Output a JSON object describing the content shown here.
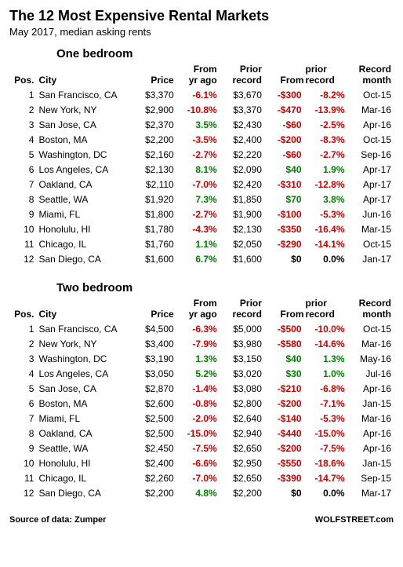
{
  "title": "The 12 Most Expensive Rental Markets",
  "subtitle": "May 2017, median asking rents",
  "footer_left": "Source of data: Zumper",
  "footer_right": "WOLFSTREET.com",
  "headers": {
    "pos": "Pos.",
    "city": "City",
    "price": "Price",
    "from_yr": "From\nyr ago",
    "prior": "Prior\nrecord",
    "from_prior": "From\nprior record",
    "month": "Record\nmonth"
  },
  "sections": [
    {
      "label": "One bedroom",
      "rows": [
        {
          "pos": 1,
          "city": "San Francisco, CA",
          "price": "$3,370",
          "yoy": "-6.1%",
          "yoy_c": "neg",
          "prior": "$3,670",
          "diff": "-$300",
          "diff_c": "neg",
          "pct": "-8.2%",
          "pct_c": "neg",
          "month": "Oct-15"
        },
        {
          "pos": 2,
          "city": "New York, NY",
          "price": "$2,900",
          "yoy": "-10.8%",
          "yoy_c": "neg",
          "prior": "$3,370",
          "diff": "-$470",
          "diff_c": "neg",
          "pct": "-13.9%",
          "pct_c": "neg",
          "month": "Mar-16"
        },
        {
          "pos": 3,
          "city": "San Jose, CA",
          "price": "$2,370",
          "yoy": "3.5%",
          "yoy_c": "pos",
          "prior": "$2,430",
          "diff": "-$60",
          "diff_c": "neg",
          "pct": "-2.5%",
          "pct_c": "neg",
          "month": "Apr-16"
        },
        {
          "pos": 4,
          "city": "Boston, MA",
          "price": "$2,200",
          "yoy": "-3.5%",
          "yoy_c": "neg",
          "prior": "$2,400",
          "diff": "-$200",
          "diff_c": "neg",
          "pct": "-8.3%",
          "pct_c": "neg",
          "month": "Oct-15"
        },
        {
          "pos": 5,
          "city": "Washington, DC",
          "price": "$2,160",
          "yoy": "-2.7%",
          "yoy_c": "neg",
          "prior": "$2,220",
          "diff": "-$60",
          "diff_c": "neg",
          "pct": "-2.7%",
          "pct_c": "neg",
          "month": "Sep-16"
        },
        {
          "pos": 6,
          "city": "Los Angeles, CA",
          "price": "$2,130",
          "yoy": "8.1%",
          "yoy_c": "pos",
          "prior": "$2,090",
          "diff": "$40",
          "diff_c": "pos",
          "pct": "1.9%",
          "pct_c": "pos",
          "month": "Apr-17"
        },
        {
          "pos": 7,
          "city": "Oakland, CA",
          "price": "$2,110",
          "yoy": "-7.0%",
          "yoy_c": "neg",
          "prior": "$2,420",
          "diff": "-$310",
          "diff_c": "neg",
          "pct": "-12.8%",
          "pct_c": "neg",
          "month": "Apr-17"
        },
        {
          "pos": 8,
          "city": "Seattle, WA",
          "price": "$1,920",
          "yoy": "7.3%",
          "yoy_c": "pos",
          "prior": "$1,850",
          "diff": "$70",
          "diff_c": "pos",
          "pct": "3.8%",
          "pct_c": "pos",
          "month": "Apr-17"
        },
        {
          "pos": 9,
          "city": "Miami, FL",
          "price": "$1,800",
          "yoy": "-2.7%",
          "yoy_c": "neg",
          "prior": "$1,900",
          "diff": "-$100",
          "diff_c": "neg",
          "pct": "-5.3%",
          "pct_c": "neg",
          "month": "Jun-16"
        },
        {
          "pos": 10,
          "city": "Honolulu, HI",
          "price": "$1,780",
          "yoy": "-4.3%",
          "yoy_c": "neg",
          "prior": "$2,130",
          "diff": "-$350",
          "diff_c": "neg",
          "pct": "-16.4%",
          "pct_c": "neg",
          "month": "Mar-15"
        },
        {
          "pos": 11,
          "city": "Chicago, IL",
          "price": "$1,760",
          "yoy": "1.1%",
          "yoy_c": "pos",
          "prior": "$2,050",
          "diff": "-$290",
          "diff_c": "neg",
          "pct": "-14.1%",
          "pct_c": "neg",
          "month": "Oct-15"
        },
        {
          "pos": 12,
          "city": "San Diego, CA",
          "price": "$1,600",
          "yoy": "6.7%",
          "yoy_c": "pos",
          "prior": "$1,600",
          "diff": "$0",
          "diff_c": "zero",
          "pct": "0.0%",
          "pct_c": "zero",
          "month": "Jan-17"
        }
      ]
    },
    {
      "label": "Two bedroom",
      "rows": [
        {
          "pos": 1,
          "city": "San Francisco, CA",
          "price": "$4,500",
          "yoy": "-6.3%",
          "yoy_c": "neg",
          "prior": "$5,000",
          "diff": "-$500",
          "diff_c": "neg",
          "pct": "-10.0%",
          "pct_c": "neg",
          "month": "Oct-15"
        },
        {
          "pos": 2,
          "city": "New York, NY",
          "price": "$3,400",
          "yoy": "-7.9%",
          "yoy_c": "neg",
          "prior": "$3,980",
          "diff": "-$580",
          "diff_c": "neg",
          "pct": "-14.6%",
          "pct_c": "neg",
          "month": "Mar-16"
        },
        {
          "pos": 3,
          "city": "Washington, DC",
          "price": "$3,190",
          "yoy": "1.3%",
          "yoy_c": "pos",
          "prior": "$3,150",
          "diff": "$40",
          "diff_c": "pos",
          "pct": "1.3%",
          "pct_c": "pos",
          "month": "May-16"
        },
        {
          "pos": 4,
          "city": "Los Angeles, CA",
          "price": "$3,050",
          "yoy": "5.2%",
          "yoy_c": "pos",
          "prior": "$3,020",
          "diff": "$30",
          "diff_c": "pos",
          "pct": "1.0%",
          "pct_c": "pos",
          "month": "Jul-16"
        },
        {
          "pos": 5,
          "city": "San Jose, CA",
          "price": "$2,870",
          "yoy": "-1.4%",
          "yoy_c": "neg",
          "prior": "$3,080",
          "diff": "-$210",
          "diff_c": "neg",
          "pct": "-6.8%",
          "pct_c": "neg",
          "month": "Apr-16"
        },
        {
          "pos": 6,
          "city": "Boston, MA",
          "price": "$2,600",
          "yoy": "-0.8%",
          "yoy_c": "neg",
          "prior": "$2,800",
          "diff": "-$200",
          "diff_c": "neg",
          "pct": "-7.1%",
          "pct_c": "neg",
          "month": "Jan-15"
        },
        {
          "pos": 7,
          "city": "Miami, FL",
          "price": "$2,500",
          "yoy": "-2.0%",
          "yoy_c": "neg",
          "prior": "$2,640",
          "diff": "-$140",
          "diff_c": "neg",
          "pct": "-5.3%",
          "pct_c": "neg",
          "month": "Mar-16"
        },
        {
          "pos": 8,
          "city": "Oakland, CA",
          "price": "$2,500",
          "yoy": "-15.0%",
          "yoy_c": "neg",
          "prior": "$2,940",
          "diff": "-$440",
          "diff_c": "neg",
          "pct": "-15.0%",
          "pct_c": "neg",
          "month": "Apr-16"
        },
        {
          "pos": 9,
          "city": "Seattle, WA",
          "price": "$2,450",
          "yoy": "-7.5%",
          "yoy_c": "neg",
          "prior": "$2,650",
          "diff": "-$200",
          "diff_c": "neg",
          "pct": "-7.5%",
          "pct_c": "neg",
          "month": "Apr-16"
        },
        {
          "pos": 10,
          "city": "Honolulu, HI",
          "price": "$2,400",
          "yoy": "-6.6%",
          "yoy_c": "neg",
          "prior": "$2,950",
          "diff": "-$550",
          "diff_c": "neg",
          "pct": "-18.6%",
          "pct_c": "neg",
          "month": "Jan-15"
        },
        {
          "pos": 11,
          "city": "Chicago, IL",
          "price": "$2,260",
          "yoy": "-7.0%",
          "yoy_c": "neg",
          "prior": "$2,650",
          "diff": "-$390",
          "diff_c": "neg",
          "pct": "-14.7%",
          "pct_c": "neg",
          "month": "Sep-15"
        },
        {
          "pos": 12,
          "city": "San Diego, CA",
          "price": "$2,200",
          "yoy": "4.8%",
          "yoy_c": "pos",
          "prior": "$2,200",
          "diff": "$0",
          "diff_c": "zero",
          "pct": "0.0%",
          "pct_c": "zero",
          "month": "Mar-17"
        }
      ]
    }
  ]
}
